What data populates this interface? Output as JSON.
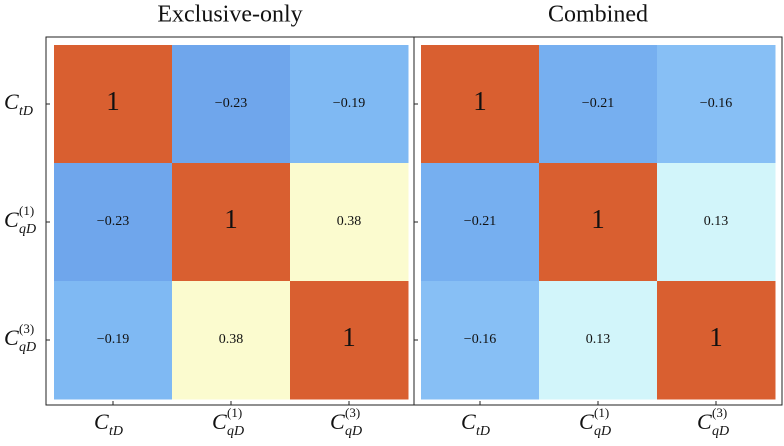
{
  "chart_data": [
    {
      "type": "heatmap",
      "title": "Exclusive-only",
      "x_categories": [
        {
          "main": "C",
          "sub": "tD"
        },
        {
          "main": "C",
          "sup": "(1)",
          "sub": "qD"
        },
        {
          "main": "C",
          "sup": "(3)",
          "sub": "qD"
        }
      ],
      "y_categories": [
        {
          "main": "C",
          "sub": "tD"
        },
        {
          "main": "C",
          "sup": "(1)",
          "sub": "qD"
        },
        {
          "main": "C",
          "sup": "(3)",
          "sub": "qD"
        }
      ],
      "values": [
        [
          1,
          -0.23,
          -0.19
        ],
        [
          -0.23,
          1,
          0.38
        ],
        [
          -0.19,
          0.38,
          1
        ]
      ],
      "value_labels": [
        [
          "1",
          "−0.23",
          "−0.19"
        ],
        [
          "−0.23",
          "1",
          "0.38"
        ],
        [
          "−0.19",
          "0.38",
          "1"
        ]
      ],
      "colors": [
        [
          "#d95f30",
          "#6fa6ec",
          "#7fb9f3"
        ],
        [
          "#6fa6ec",
          "#d95f30",
          "#fbfbcf"
        ],
        [
          "#7fb9f3",
          "#fbfbcf",
          "#d95f30"
        ]
      ]
    },
    {
      "type": "heatmap",
      "title": "Combined",
      "x_categories": [
        {
          "main": "C",
          "sub": "tD"
        },
        {
          "main": "C",
          "sup": "(1)",
          "sub": "qD"
        },
        {
          "main": "C",
          "sup": "(3)",
          "sub": "qD"
        }
      ],
      "y_categories": [
        {
          "main": "C",
          "sub": "tD"
        },
        {
          "main": "C",
          "sup": "(1)",
          "sub": "qD"
        },
        {
          "main": "C",
          "sup": "(3)",
          "sub": "qD"
        }
      ],
      "values": [
        [
          1,
          -0.21,
          -0.16
        ],
        [
          -0.21,
          1,
          0.13
        ],
        [
          -0.16,
          0.13,
          1
        ]
      ],
      "value_labels": [
        [
          "1",
          "−0.21",
          "−0.16"
        ],
        [
          "−0.21",
          "1",
          "0.13"
        ],
        [
          "−0.16",
          "0.13",
          "1"
        ]
      ],
      "colors": [
        [
          "#d95f30",
          "#76aff0",
          "#87bff5"
        ],
        [
          "#76aff0",
          "#d95f30",
          "#d2f5fa"
        ],
        [
          "#87bff5",
          "#d2f5fa",
          "#d95f30"
        ]
      ]
    }
  ]
}
